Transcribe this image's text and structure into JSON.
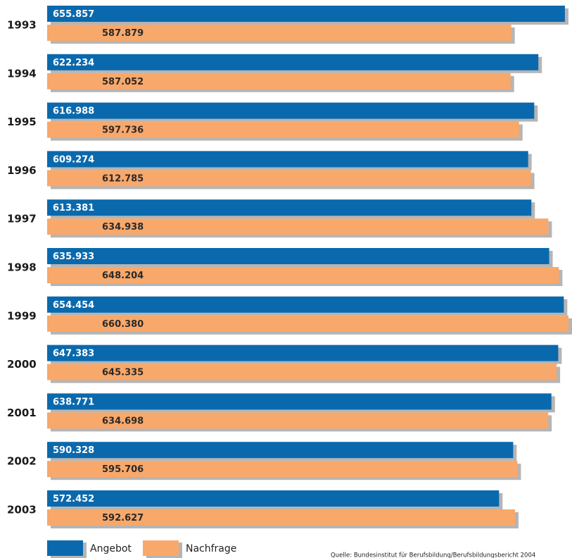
{
  "chart_data": {
    "type": "bar",
    "orientation": "horizontal",
    "categories": [
      "1993",
      "1994",
      "1995",
      "1996",
      "1997",
      "1998",
      "1999",
      "2000",
      "2001",
      "2002",
      "2003"
    ],
    "series": [
      {
        "name": "Angebot",
        "color": "#0a69ad",
        "values": [
          655857,
          622234,
          616988,
          609274,
          613381,
          635933,
          654454,
          647383,
          638771,
          590328,
          572452
        ],
        "value_labels": [
          "655.857",
          "622.234",
          "616.988",
          "609.274",
          "613.381",
          "635.933",
          "654.454",
          "647.383",
          "638.771",
          "590.328",
          "572.452"
        ]
      },
      {
        "name": "Nachfrage",
        "color": "#f8a86a",
        "values": [
          587879,
          587052,
          597736,
          612785,
          634938,
          648204,
          660380,
          645335,
          634698,
          595706,
          592627
        ],
        "value_labels": [
          "587.879",
          "587.052",
          "597.736",
          "612.785",
          "634.938",
          "648.204",
          "660.380",
          "645.335",
          "634.698",
          "595.706",
          "592.627"
        ]
      }
    ],
    "source": "Quelle: Bundesinstitut für Berufsbildung/Berufsbildungsbericht 2004"
  }
}
